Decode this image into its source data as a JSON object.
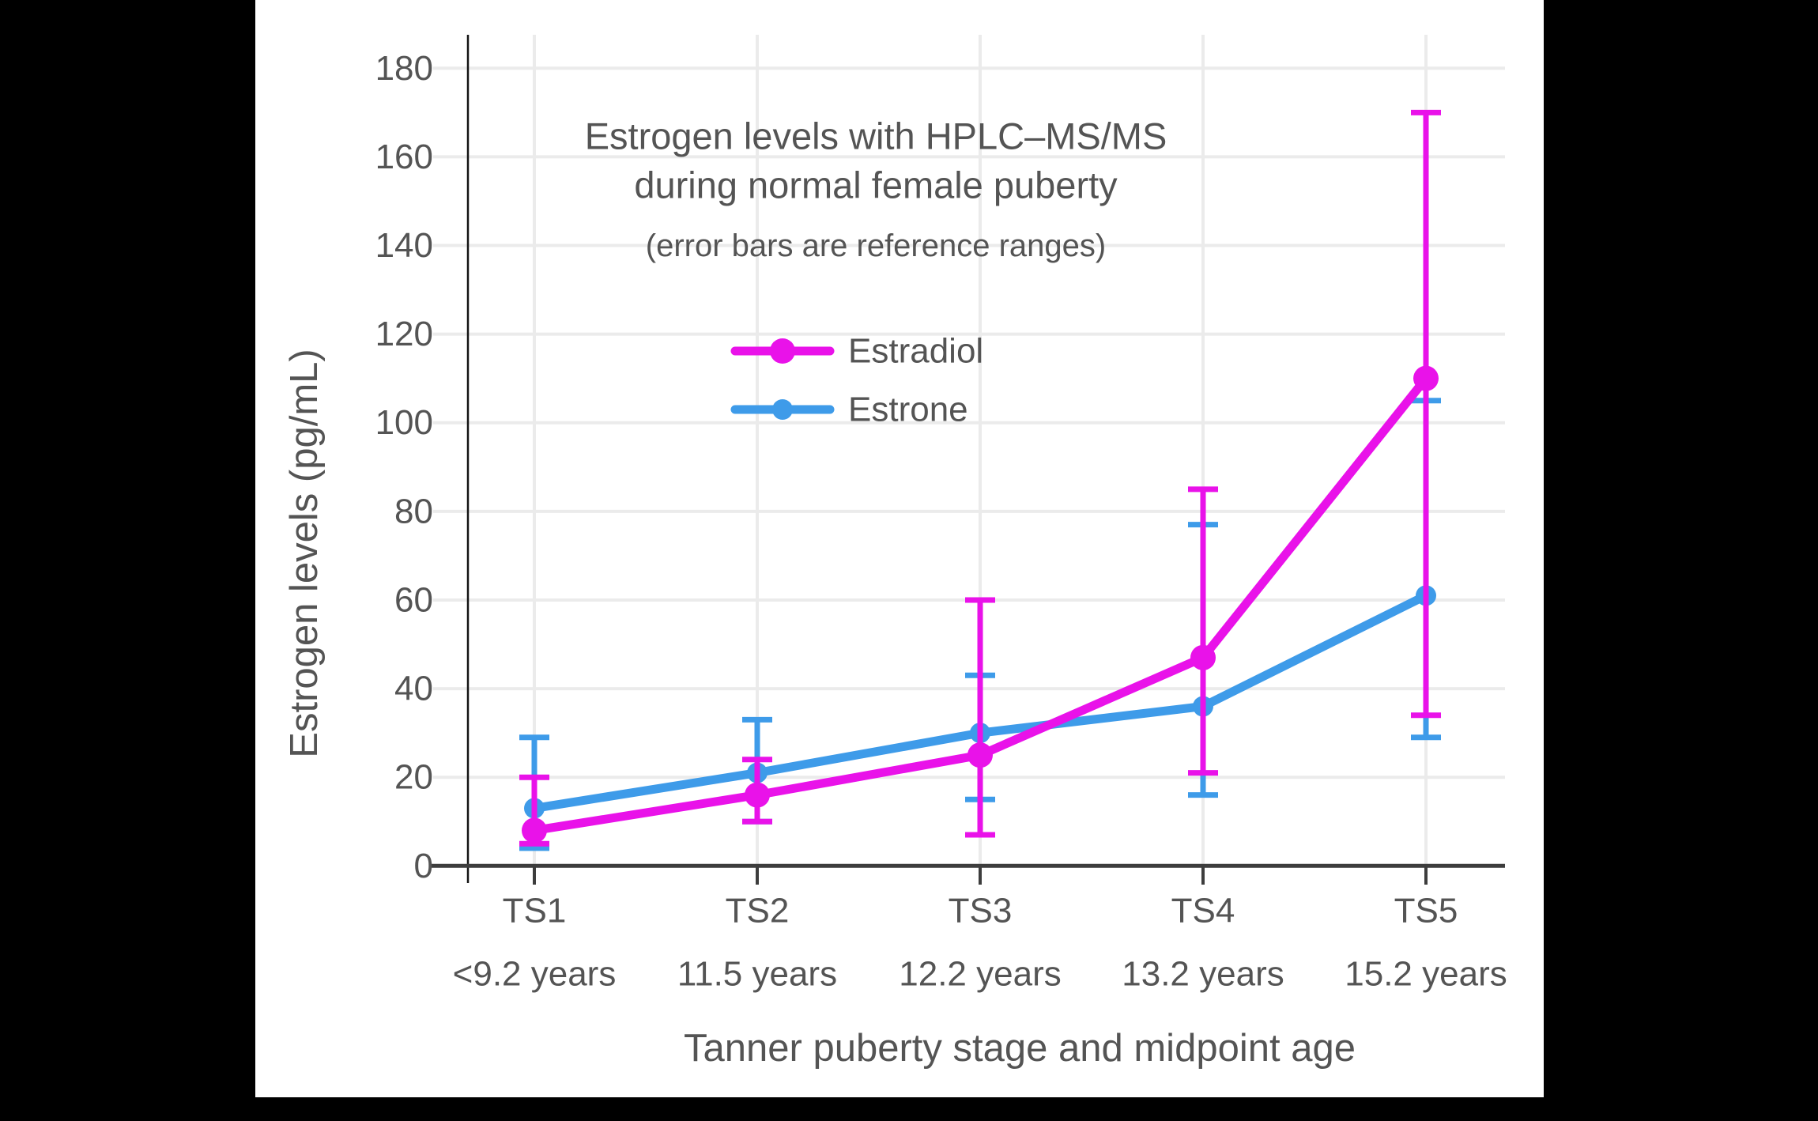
{
  "chart_data": {
    "type": "line",
    "title_lines": [
      "Estrogen levels with HPLC–MS/MS",
      "during normal female puberty"
    ],
    "subtitle": "(error bars are reference ranges)",
    "xlabel": "Tanner puberty stage and midpoint age",
    "ylabel": "Estrogen levels (pg/mL)",
    "ylim": [
      0,
      180
    ],
    "y_ticks": [
      0,
      20,
      40,
      60,
      80,
      100,
      120,
      140,
      160,
      180
    ],
    "grid": true,
    "legend_position": "upper-left-inside",
    "error_bars": "reference ranges",
    "categories": [
      "TS1",
      "TS2",
      "TS3",
      "TS4",
      "TS5"
    ],
    "category_ages": [
      "<9.2 years",
      "11.5 years",
      "12.2 years",
      "13.2 years",
      "15.2 years"
    ],
    "series": [
      {
        "name": "Estradiol",
        "color": "#E912E9",
        "values": [
          8,
          16,
          25,
          47,
          110
        ],
        "error_low": [
          5,
          10,
          7,
          21,
          34
        ],
        "error_high": [
          20,
          24,
          60,
          85,
          170
        ]
      },
      {
        "name": "Estrone",
        "color": "#3E9BE9",
        "values": [
          13,
          21,
          30,
          36,
          61
        ],
        "error_low": [
          4,
          10,
          15,
          16,
          29
        ],
        "error_high": [
          29,
          33,
          43,
          77,
          105
        ]
      }
    ],
    "colors": {
      "grid": "#EBEBEB",
      "axis": "#3D3D3D",
      "y_axis_line": "#141414",
      "text": "#545454"
    }
  }
}
